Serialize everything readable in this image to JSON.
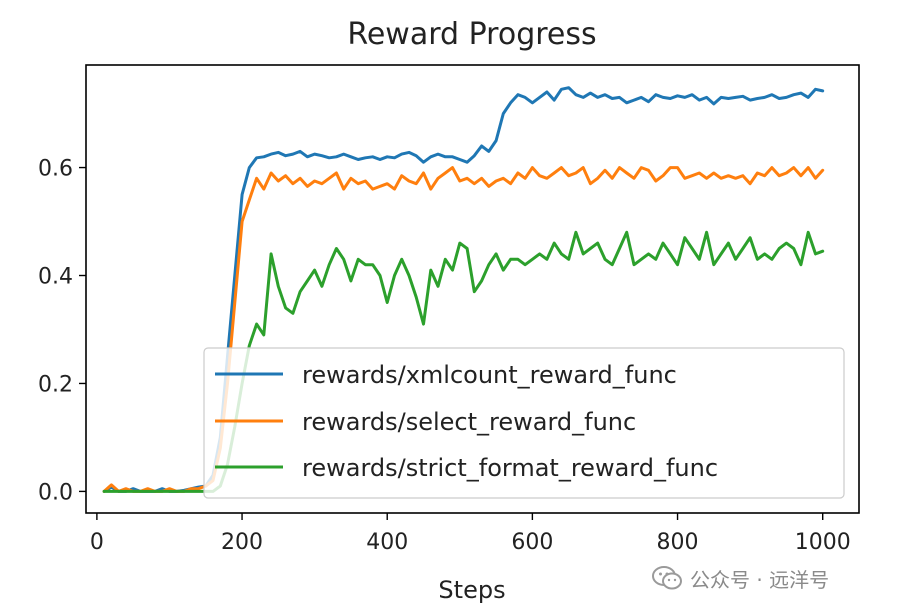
{
  "chart_data": {
    "type": "line",
    "title": "Reward Progress",
    "xlabel": "Steps",
    "ylabel": "",
    "xlim": [
      -15,
      1050
    ],
    "ylim": [
      -0.04,
      0.79
    ],
    "xticks": [
      0,
      200,
      400,
      600,
      800,
      1000
    ],
    "yticks": [
      0.0,
      0.2,
      0.4,
      0.6
    ],
    "xtick_labels": [
      "0",
      "200",
      "400",
      "600",
      "800",
      "1000"
    ],
    "ytick_labels": [
      "0.0",
      "0.2",
      "0.4",
      "0.6"
    ],
    "grid": false,
    "legend_position": "lower-right",
    "series": [
      {
        "name": "rewards/xmlcount_reward_func",
        "color": "#1f77b4",
        "x": [
          10,
          20,
          30,
          40,
          50,
          60,
          70,
          80,
          90,
          100,
          110,
          120,
          130,
          140,
          150,
          160,
          170,
          180,
          190,
          200,
          210,
          220,
          230,
          240,
          250,
          260,
          270,
          280,
          290,
          300,
          310,
          320,
          330,
          340,
          350,
          360,
          370,
          380,
          390,
          400,
          410,
          420,
          430,
          440,
          450,
          460,
          470,
          480,
          490,
          500,
          510,
          520,
          530,
          540,
          550,
          560,
          570,
          580,
          590,
          600,
          610,
          620,
          630,
          640,
          650,
          660,
          670,
          680,
          690,
          700,
          710,
          720,
          730,
          740,
          750,
          760,
          770,
          780,
          790,
          800,
          810,
          820,
          830,
          840,
          850,
          860,
          870,
          880,
          890,
          900,
          910,
          920,
          930,
          940,
          950,
          960,
          970,
          980,
          990,
          1000
        ],
        "y": [
          0.0,
          0.008,
          0.0,
          0.0,
          0.005,
          0.0,
          0.0,
          0.0,
          0.005,
          0.0,
          0.0,
          0.002,
          0.005,
          0.008,
          0.01,
          0.03,
          0.1,
          0.25,
          0.4,
          0.55,
          0.6,
          0.618,
          0.62,
          0.625,
          0.628,
          0.622,
          0.625,
          0.63,
          0.62,
          0.625,
          0.622,
          0.618,
          0.62,
          0.625,
          0.62,
          0.615,
          0.618,
          0.62,
          0.615,
          0.62,
          0.618,
          0.625,
          0.628,
          0.622,
          0.61,
          0.62,
          0.625,
          0.62,
          0.62,
          0.615,
          0.61,
          0.622,
          0.64,
          0.63,
          0.65,
          0.7,
          0.72,
          0.735,
          0.73,
          0.72,
          0.73,
          0.74,
          0.725,
          0.745,
          0.748,
          0.735,
          0.73,
          0.738,
          0.73,
          0.735,
          0.728,
          0.73,
          0.72,
          0.725,
          0.73,
          0.722,
          0.735,
          0.73,
          0.728,
          0.733,
          0.73,
          0.735,
          0.725,
          0.73,
          0.718,
          0.73,
          0.728,
          0.73,
          0.732,
          0.725,
          0.728,
          0.73,
          0.735,
          0.728,
          0.73,
          0.735,
          0.738,
          0.73,
          0.745,
          0.742
        ]
      },
      {
        "name": "rewards/select_reward_func",
        "color": "#ff7f0e",
        "x": [
          10,
          20,
          30,
          40,
          50,
          60,
          70,
          80,
          90,
          100,
          110,
          120,
          130,
          140,
          150,
          160,
          170,
          180,
          190,
          200,
          210,
          220,
          230,
          240,
          250,
          260,
          270,
          280,
          290,
          300,
          310,
          320,
          330,
          340,
          350,
          360,
          370,
          380,
          390,
          400,
          410,
          420,
          430,
          440,
          450,
          460,
          470,
          480,
          490,
          500,
          510,
          520,
          530,
          540,
          550,
          560,
          570,
          580,
          590,
          600,
          610,
          620,
          630,
          640,
          650,
          660,
          670,
          680,
          690,
          700,
          710,
          720,
          730,
          740,
          750,
          760,
          770,
          780,
          790,
          800,
          810,
          820,
          830,
          840,
          850,
          860,
          870,
          880,
          890,
          900,
          910,
          920,
          930,
          940,
          950,
          960,
          970,
          980,
          990,
          1000
        ],
        "y": [
          0.0,
          0.012,
          0.0,
          0.005,
          0.0,
          0.0,
          0.005,
          0.0,
          0.0,
          0.005,
          0.0,
          0.0,
          0.005,
          0.005,
          0.01,
          0.02,
          0.08,
          0.2,
          0.35,
          0.5,
          0.54,
          0.58,
          0.56,
          0.59,
          0.575,
          0.585,
          0.57,
          0.58,
          0.565,
          0.575,
          0.57,
          0.58,
          0.59,
          0.56,
          0.58,
          0.57,
          0.575,
          0.56,
          0.565,
          0.57,
          0.56,
          0.585,
          0.575,
          0.57,
          0.59,
          0.56,
          0.58,
          0.59,
          0.6,
          0.575,
          0.58,
          0.57,
          0.58,
          0.565,
          0.575,
          0.58,
          0.57,
          0.59,
          0.58,
          0.6,
          0.585,
          0.58,
          0.59,
          0.6,
          0.585,
          0.59,
          0.6,
          0.57,
          0.58,
          0.595,
          0.58,
          0.6,
          0.59,
          0.58,
          0.6,
          0.595,
          0.575,
          0.585,
          0.6,
          0.6,
          0.58,
          0.585,
          0.59,
          0.58,
          0.59,
          0.58,
          0.585,
          0.58,
          0.585,
          0.57,
          0.59,
          0.585,
          0.6,
          0.585,
          0.59,
          0.6,
          0.585,
          0.6,
          0.58,
          0.595
        ]
      },
      {
        "name": "rewards/strict_format_reward_func",
        "color": "#2ca02c",
        "x": [
          10,
          20,
          30,
          40,
          50,
          60,
          70,
          80,
          90,
          100,
          110,
          120,
          130,
          140,
          150,
          160,
          170,
          180,
          190,
          200,
          210,
          220,
          230,
          240,
          250,
          260,
          270,
          280,
          290,
          300,
          310,
          320,
          330,
          340,
          350,
          360,
          370,
          380,
          390,
          400,
          410,
          420,
          430,
          440,
          450,
          460,
          470,
          480,
          490,
          500,
          510,
          520,
          530,
          540,
          550,
          560,
          570,
          580,
          590,
          600,
          610,
          620,
          630,
          640,
          650,
          660,
          670,
          680,
          690,
          700,
          710,
          720,
          730,
          740,
          750,
          760,
          770,
          780,
          790,
          800,
          810,
          820,
          830,
          840,
          850,
          860,
          870,
          880,
          890,
          900,
          910,
          920,
          930,
          940,
          950,
          960,
          970,
          980,
          990,
          1000
        ],
        "y": [
          0.0,
          0.0,
          0.0,
          0.0,
          0.0,
          0.0,
          0.0,
          0.0,
          0.0,
          0.0,
          0.0,
          0.0,
          0.0,
          0.0,
          0.0,
          0.0,
          0.01,
          0.05,
          0.12,
          0.2,
          0.27,
          0.31,
          0.29,
          0.44,
          0.38,
          0.34,
          0.33,
          0.37,
          0.39,
          0.41,
          0.38,
          0.42,
          0.45,
          0.43,
          0.39,
          0.43,
          0.42,
          0.42,
          0.4,
          0.35,
          0.4,
          0.43,
          0.4,
          0.36,
          0.31,
          0.41,
          0.38,
          0.43,
          0.41,
          0.46,
          0.45,
          0.37,
          0.39,
          0.42,
          0.44,
          0.41,
          0.43,
          0.43,
          0.42,
          0.43,
          0.44,
          0.43,
          0.46,
          0.44,
          0.43,
          0.48,
          0.44,
          0.45,
          0.46,
          0.43,
          0.42,
          0.45,
          0.48,
          0.42,
          0.43,
          0.44,
          0.43,
          0.46,
          0.44,
          0.42,
          0.47,
          0.45,
          0.43,
          0.48,
          0.42,
          0.44,
          0.46,
          0.43,
          0.45,
          0.47,
          0.43,
          0.44,
          0.43,
          0.45,
          0.46,
          0.45,
          0.42,
          0.48,
          0.44,
          0.445
        ]
      }
    ]
  },
  "watermark": {
    "label": "公众号 · 远洋号",
    "icon": "wechat-icon"
  }
}
